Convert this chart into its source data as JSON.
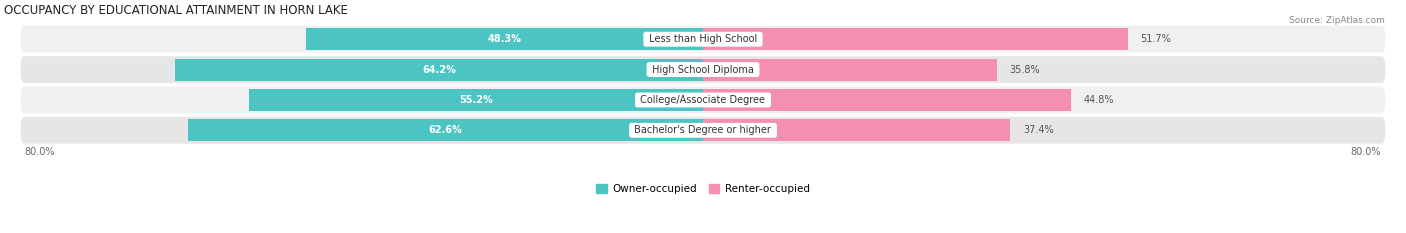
{
  "title": "OCCUPANCY BY EDUCATIONAL ATTAINMENT IN HORN LAKE",
  "source": "Source: ZipAtlas.com",
  "categories": [
    "Less than High School",
    "High School Diploma",
    "College/Associate Degree",
    "Bachelor's Degree or higher"
  ],
  "owner_values": [
    48.3,
    64.2,
    55.2,
    62.6
  ],
  "renter_values": [
    51.7,
    35.8,
    44.8,
    37.4
  ],
  "owner_color": "#4DC4C4",
  "renter_color": "#F48FB1",
  "row_bg_light": "#F0F0F0",
  "row_bg_dark": "#E6E6E6",
  "axis_max": 80.0,
  "legend_owner": "Owner-occupied",
  "legend_renter": "Renter-occupied",
  "bar_height": 0.72
}
